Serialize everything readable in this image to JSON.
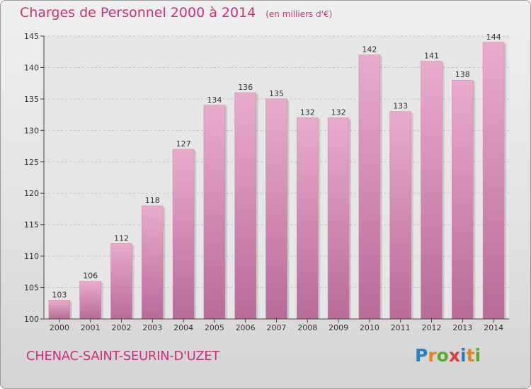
{
  "header": {
    "title": "Charges de Personnel 2000 à 2014",
    "subtitle": "(en milliers d'€)"
  },
  "footer": {
    "town": "CHENAC-SAINT-SEURIN-D'UZET"
  },
  "logo": {
    "letters": [
      "P",
      "r",
      "o",
      "x",
      "i",
      "t",
      "i"
    ],
    "colors": [
      "#2a7fc0",
      "#e8821e",
      "#5aa838",
      "#e23a3a",
      "#2a7fc0",
      "#e8821e",
      "#5aa838"
    ]
  },
  "colors": {
    "bar": "#d98ab8",
    "bar_light": "#e9abcd",
    "bar_dark": "#b86b98",
    "text": "#c8317a",
    "axis": "#444444"
  },
  "chart_data": {
    "type": "bar",
    "categories": [
      "2000",
      "2001",
      "2002",
      "2003",
      "2004",
      "2005",
      "2006",
      "2007",
      "2008",
      "2009",
      "2010",
      "2011",
      "2012",
      "2013",
      "2014"
    ],
    "values": [
      103,
      106,
      112,
      118,
      127,
      134,
      136,
      135,
      132,
      132,
      142,
      133,
      141,
      138,
      144
    ],
    "title": "Charges de Personnel 2000 à 2014",
    "subtitle": "(en milliers d'€)",
    "xlabel": "",
    "ylabel": "",
    "ylim": [
      100,
      145
    ],
    "yticks": [
      100,
      105,
      110,
      115,
      120,
      125,
      130,
      135,
      140,
      145
    ],
    "grid": true,
    "legend": "none"
  }
}
